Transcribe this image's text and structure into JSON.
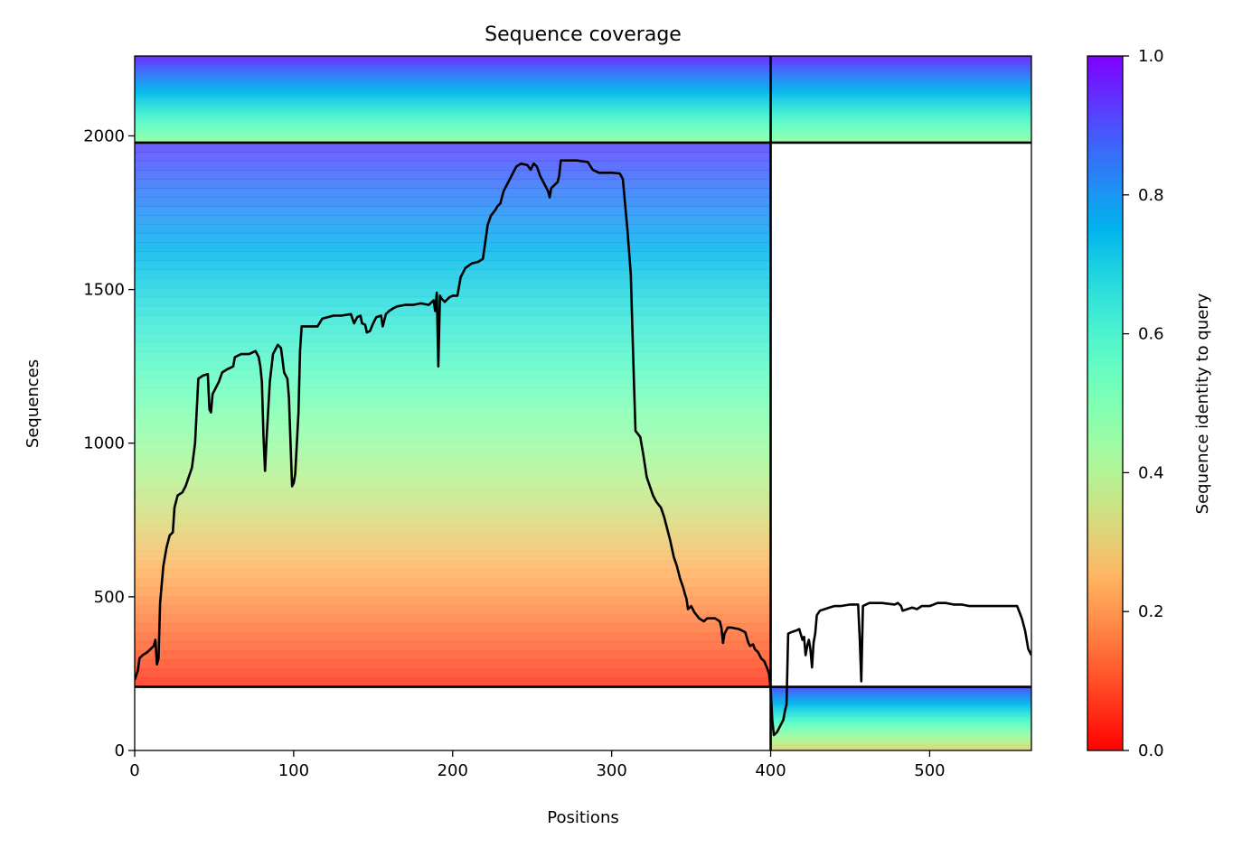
{
  "chart_data": {
    "type": "heatmap",
    "title": "Sequence coverage",
    "xlabel": "Positions",
    "ylabel": "Sequences",
    "xlim": [
      0,
      564
    ],
    "ylim": [
      0,
      2260
    ],
    "x_ticks": [
      0,
      100,
      200,
      300,
      400,
      500
    ],
    "y_ticks": [
      0,
      500,
      1000,
      1500,
      2000
    ],
    "colorbar": {
      "label": "Sequence identity to query",
      "colormap": "rainbow_r",
      "range": [
        0,
        1
      ],
      "ticks": [
        "0.0",
        "0.2",
        "0.4",
        "0.6",
        "0.8",
        "1.0"
      ]
    },
    "segment_boundary_x": 400,
    "block_boundaries_y": [
      207,
      1978
    ],
    "blocks": [
      {
        "name": "",
        "x_range": [
          0,
          400
        ],
        "y_range": [
          1978,
          2260
        ],
        "identity_bottom": 0.45,
        "identity_top": 0.95
      },
      {
        "name": "",
        "x_range": [
          400,
          564
        ],
        "y_range": [
          1978,
          2260
        ],
        "identity_bottom": 0.45,
        "identity_top": 0.95
      },
      {
        "name": "",
        "x_range": [
          0,
          400
        ],
        "y_range": [
          207,
          1978
        ],
        "identity_bottom": 0.06,
        "identity_top": 0.92
      },
      {
        "name": "",
        "x_range": [
          400,
          564
        ],
        "y_range": [
          0,
          207
        ],
        "identity_bottom": 0.3,
        "identity_top": 0.9
      }
    ],
    "coverage_line": {
      "name": "",
      "points": [
        [
          0,
          230
        ],
        [
          2,
          260
        ],
        [
          3,
          300
        ],
        [
          5,
          310
        ],
        [
          8,
          320
        ],
        [
          10,
          330
        ],
        [
          12,
          340
        ],
        [
          13,
          360
        ],
        [
          14,
          280
        ],
        [
          15,
          300
        ],
        [
          16,
          480
        ],
        [
          18,
          600
        ],
        [
          20,
          660
        ],
        [
          22,
          700
        ],
        [
          24,
          710
        ],
        [
          25,
          790
        ],
        [
          27,
          830
        ],
        [
          30,
          840
        ],
        [
          32,
          860
        ],
        [
          34,
          890
        ],
        [
          36,
          920
        ],
        [
          38,
          1000
        ],
        [
          40,
          1210
        ],
        [
          43,
          1220
        ],
        [
          46,
          1225
        ],
        [
          47,
          1110
        ],
        [
          48,
          1100
        ],
        [
          49,
          1160
        ],
        [
          51,
          1180
        ],
        [
          53,
          1200
        ],
        [
          55,
          1230
        ],
        [
          58,
          1240
        ],
        [
          62,
          1250
        ],
        [
          63,
          1280
        ],
        [
          67,
          1290
        ],
        [
          72,
          1290
        ],
        [
          76,
          1300
        ],
        [
          78,
          1280
        ],
        [
          79,
          1250
        ],
        [
          80,
          1200
        ],
        [
          81,
          1020
        ],
        [
          82,
          910
        ],
        [
          83,
          1020
        ],
        [
          85,
          1200
        ],
        [
          87,
          1290
        ],
        [
          90,
          1320
        ],
        [
          92,
          1310
        ],
        [
          93,
          1270
        ],
        [
          94,
          1230
        ],
        [
          96,
          1210
        ],
        [
          97,
          1150
        ],
        [
          98,
          1000
        ],
        [
          99,
          860
        ],
        [
          100,
          870
        ],
        [
          101,
          900
        ],
        [
          103,
          1100
        ],
        [
          104,
          1300
        ],
        [
          105,
          1380
        ],
        [
          110,
          1380
        ],
        [
          115,
          1380
        ],
        [
          118,
          1405
        ],
        [
          125,
          1415
        ],
        [
          130,
          1415
        ],
        [
          136,
          1420
        ],
        [
          138,
          1390
        ],
        [
          140,
          1410
        ],
        [
          142,
          1415
        ],
        [
          143,
          1390
        ],
        [
          145,
          1385
        ],
        [
          146,
          1360
        ],
        [
          148,
          1365
        ],
        [
          150,
          1390
        ],
        [
          152,
          1410
        ],
        [
          155,
          1415
        ],
        [
          156,
          1380
        ],
        [
          158,
          1420
        ],
        [
          160,
          1430
        ],
        [
          163,
          1440
        ],
        [
          165,
          1445
        ],
        [
          170,
          1450
        ],
        [
          175,
          1450
        ],
        [
          180,
          1455
        ],
        [
          185,
          1450
        ],
        [
          188,
          1465
        ],
        [
          189,
          1430
        ],
        [
          190,
          1490
        ],
        [
          191,
          1250
        ],
        [
          192,
          1480
        ],
        [
          193,
          1470
        ],
        [
          195,
          1460
        ],
        [
          198,
          1475
        ],
        [
          200,
          1480
        ],
        [
          203,
          1480
        ],
        [
          205,
          1540
        ],
        [
          208,
          1570
        ],
        [
          212,
          1585
        ],
        [
          216,
          1590
        ],
        [
          219,
          1600
        ],
        [
          222,
          1710
        ],
        [
          224,
          1740
        ],
        [
          227,
          1760
        ],
        [
          228,
          1770
        ],
        [
          230,
          1780
        ],
        [
          232,
          1820
        ],
        [
          234,
          1840
        ],
        [
          236,
          1860
        ],
        [
          238,
          1880
        ],
        [
          240,
          1900
        ],
        [
          243,
          1910
        ],
        [
          247,
          1905
        ],
        [
          249,
          1890
        ],
        [
          251,
          1910
        ],
        [
          253,
          1900
        ],
        [
          255,
          1870
        ],
        [
          258,
          1840
        ],
        [
          260,
          1820
        ],
        [
          261,
          1800
        ],
        [
          262,
          1830
        ],
        [
          264,
          1840
        ],
        [
          266,
          1850
        ],
        [
          267,
          1870
        ],
        [
          268,
          1920
        ],
        [
          272,
          1920
        ],
        [
          278,
          1920
        ],
        [
          285,
          1915
        ],
        [
          288,
          1890
        ],
        [
          292,
          1880
        ],
        [
          296,
          1880
        ],
        [
          300,
          1880
        ],
        [
          305,
          1878
        ],
        [
          307,
          1860
        ],
        [
          310,
          1690
        ],
        [
          312,
          1550
        ],
        [
          313,
          1380
        ],
        [
          314,
          1200
        ],
        [
          315,
          1040
        ],
        [
          318,
          1020
        ],
        [
          320,
          960
        ],
        [
          322,
          890
        ],
        [
          324,
          860
        ],
        [
          326,
          830
        ],
        [
          328,
          810
        ],
        [
          331,
          790
        ],
        [
          333,
          760
        ],
        [
          335,
          720
        ],
        [
          337,
          680
        ],
        [
          339,
          630
        ],
        [
          341,
          600
        ],
        [
          343,
          560
        ],
        [
          345,
          530
        ],
        [
          346,
          510
        ],
        [
          347,
          495
        ],
        [
          348,
          460
        ],
        [
          350,
          470
        ],
        [
          352,
          450
        ],
        [
          355,
          430
        ],
        [
          358,
          420
        ],
        [
          360,
          430
        ],
        [
          365,
          430
        ],
        [
          368,
          420
        ],
        [
          369,
          400
        ],
        [
          370,
          350
        ],
        [
          371,
          380
        ],
        [
          373,
          400
        ],
        [
          375,
          400
        ],
        [
          380,
          395
        ],
        [
          384,
          385
        ],
        [
          386,
          350
        ],
        [
          387,
          340
        ],
        [
          389,
          345
        ],
        [
          390,
          330
        ],
        [
          392,
          320
        ],
        [
          394,
          300
        ],
        [
          396,
          290
        ],
        [
          398,
          265
        ],
        [
          399,
          250
        ],
        [
          400,
          200
        ],
        [
          401,
          100
        ],
        [
          402,
          50
        ],
        [
          404,
          60
        ],
        [
          406,
          80
        ],
        [
          408,
          100
        ],
        [
          409,
          130
        ],
        [
          410,
          150
        ],
        [
          411,
          380
        ],
        [
          413,
          385
        ],
        [
          416,
          390
        ],
        [
          418,
          395
        ],
        [
          420,
          360
        ],
        [
          421,
          370
        ],
        [
          422,
          310
        ],
        [
          423,
          340
        ],
        [
          424,
          360
        ],
        [
          425,
          330
        ],
        [
          426,
          270
        ],
        [
          427,
          350
        ],
        [
          428,
          380
        ],
        [
          429,
          440
        ],
        [
          431,
          455
        ],
        [
          434,
          460
        ],
        [
          437,
          465
        ],
        [
          440,
          470
        ],
        [
          444,
          470
        ],
        [
          450,
          475
        ],
        [
          455,
          475
        ],
        [
          456,
          370
        ],
        [
          457,
          225
        ],
        [
          458,
          470
        ],
        [
          462,
          480
        ],
        [
          470,
          480
        ],
        [
          478,
          475
        ],
        [
          480,
          480
        ],
        [
          482,
          470
        ],
        [
          483,
          455
        ],
        [
          486,
          460
        ],
        [
          489,
          465
        ],
        [
          492,
          460
        ],
        [
          495,
          470
        ],
        [
          500,
          470
        ],
        [
          505,
          480
        ],
        [
          510,
          480
        ],
        [
          515,
          475
        ],
        [
          520,
          475
        ],
        [
          525,
          470
        ],
        [
          530,
          470
        ],
        [
          540,
          470
        ],
        [
          555,
          470
        ],
        [
          558,
          430
        ],
        [
          560,
          390
        ],
        [
          562,
          330
        ],
        [
          564,
          310
        ]
      ]
    }
  }
}
